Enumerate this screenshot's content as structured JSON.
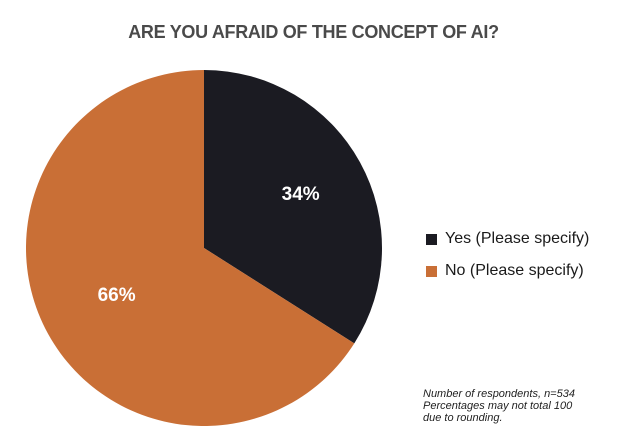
{
  "chart_data": {
    "type": "pie",
    "title": "ARE YOU AFRAID OF THE CONCEPT OF AI?",
    "categories": [
      "Yes (Please specify)",
      "No (Please specify)"
    ],
    "values": [
      34,
      66
    ],
    "value_labels": [
      "34%",
      "66%"
    ],
    "colors": [
      "#1b1b22",
      "#c96f36"
    ],
    "legend_position": "right",
    "start_angle_deg": 0,
    "direction": "clockwise"
  },
  "footnote": {
    "lines": [
      "Number of respondents, n=534",
      "Percentages may not total 100",
      "due to rounding."
    ]
  }
}
